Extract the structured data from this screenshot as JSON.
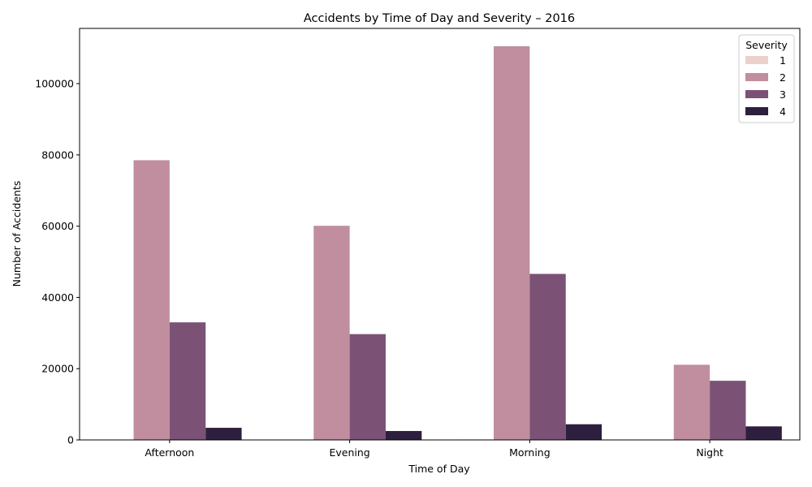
{
  "chart_data": {
    "type": "bar",
    "title": "Accidents by Time of Day and Severity – 2016",
    "xlabel": "Time of Day",
    "ylabel": "Number of Accidents",
    "categories": [
      "Afternoon",
      "Evening",
      "Morning",
      "Night"
    ],
    "ylim": [
      0,
      115500
    ],
    "yticks": [
      0,
      20000,
      40000,
      60000,
      80000,
      100000
    ],
    "legend_title": "Severity",
    "legend_position": "top-right",
    "grid": false,
    "series": [
      {
        "name": "1",
        "color": "#ebd0cb",
        "values": [
          100,
          60,
          120,
          10
        ]
      },
      {
        "name": "2",
        "color": "#c08e9e",
        "values": [
          78500,
          60100,
          110500,
          21100
        ]
      },
      {
        "name": "3",
        "color": "#7b5276",
        "values": [
          33000,
          29700,
          46600,
          16600
        ]
      },
      {
        "name": "4",
        "color": "#2d1f3d",
        "values": [
          3400,
          2500,
          4400,
          3800
        ]
      }
    ]
  }
}
